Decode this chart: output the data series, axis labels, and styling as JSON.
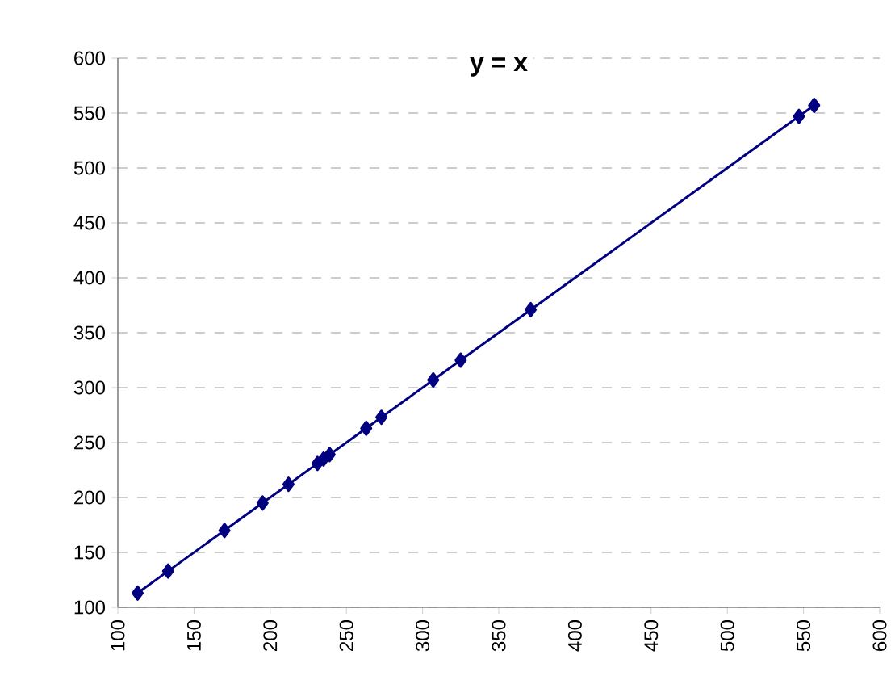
{
  "chart_data": {
    "type": "line",
    "title": "y = x",
    "x": [
      113,
      133,
      170,
      195,
      212,
      231,
      235,
      239,
      263,
      273,
      307,
      325,
      371,
      547,
      557
    ],
    "values": [
      113,
      133,
      170,
      195,
      212,
      231,
      235,
      239,
      263,
      273,
      307,
      325,
      371,
      547,
      557
    ],
    "color": "#000080",
    "marker": "diamond",
    "line_style": "solid",
    "xlim": [
      100,
      600
    ],
    "xticks": [
      100,
      150,
      200,
      250,
      300,
      350,
      400,
      450,
      500,
      550,
      600
    ],
    "ylim": [
      100,
      600
    ],
    "yticks": [
      100,
      150,
      200,
      250,
      300,
      350,
      400,
      450,
      500,
      550,
      600
    ],
    "grid": "y"
  }
}
